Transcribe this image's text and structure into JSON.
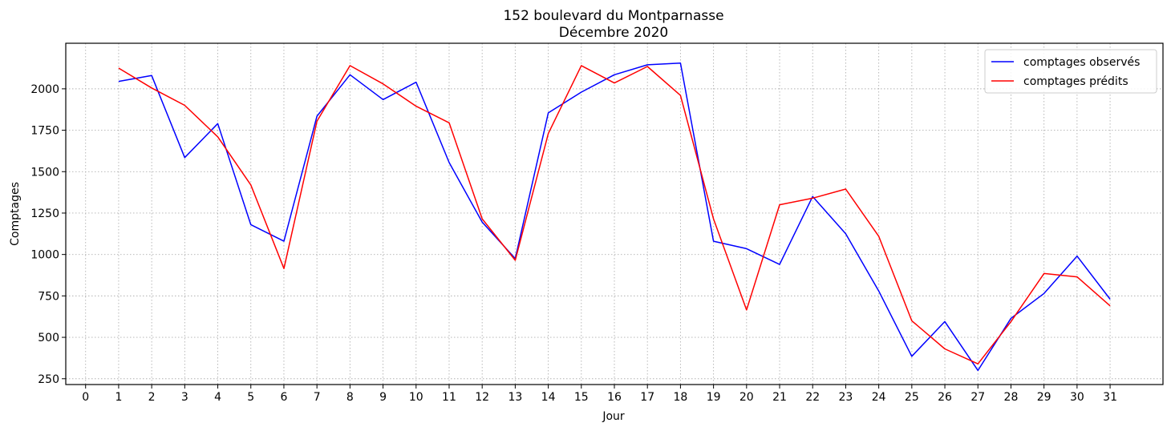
{
  "chart_data": {
    "type": "line",
    "title": "152 boulevard du Montparnasse",
    "subtitle": "Décembre 2020",
    "xlabel": "Jour",
    "ylabel": "Comptages",
    "xlim": [
      -0.6,
      32.6
    ],
    "ylim": [
      215,
      2275
    ],
    "xticks": [
      0,
      1,
      2,
      3,
      4,
      5,
      6,
      7,
      8,
      9,
      10,
      11,
      12,
      13,
      14,
      15,
      16,
      17,
      18,
      19,
      20,
      21,
      22,
      23,
      24,
      25,
      26,
      27,
      28,
      29,
      30,
      31
    ],
    "yticks": [
      250,
      500,
      750,
      1000,
      1250,
      1500,
      1750,
      2000
    ],
    "grid": true,
    "legend_position": "top-right",
    "x": [
      1,
      2,
      3,
      4,
      5,
      6,
      7,
      8,
      9,
      10,
      11,
      12,
      13,
      14,
      15,
      16,
      17,
      18,
      19,
      20,
      21,
      22,
      23,
      24,
      25,
      26,
      27,
      28,
      29,
      30,
      31
    ],
    "series": [
      {
        "name": "comptages observés",
        "color": "#0000ff",
        "values": [
          2045,
          2080,
          1585,
          1790,
          1180,
          1080,
          1835,
          2085,
          1935,
          2040,
          1555,
          1195,
          975,
          1855,
          1980,
          2085,
          2145,
          2155,
          1080,
          1035,
          940,
          1350,
          1125,
          780,
          385,
          595,
          300,
          615,
          765,
          990,
          730
        ]
      },
      {
        "name": "comptages prédits",
        "color": "#ff0000",
        "values": [
          2125,
          2005,
          1900,
          1710,
          1420,
          915,
          1805,
          2140,
          2030,
          1895,
          1795,
          1215,
          965,
          1730,
          2140,
          2035,
          2135,
          1960,
          1215,
          665,
          1300,
          1340,
          1395,
          1110,
          600,
          430,
          340,
          595,
          885,
          865,
          690
        ]
      }
    ]
  }
}
